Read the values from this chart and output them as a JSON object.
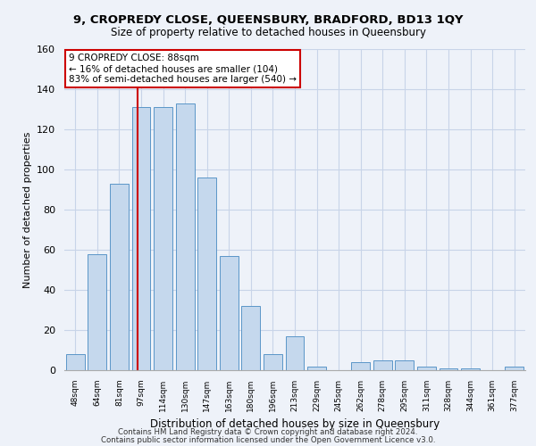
{
  "title1": "9, CROPREDY CLOSE, QUEENSBURY, BRADFORD, BD13 1QY",
  "title2": "Size of property relative to detached houses in Queensbury",
  "xlabel": "Distribution of detached houses by size in Queensbury",
  "ylabel": "Number of detached properties",
  "bar_labels": [
    "48sqm",
    "64sqm",
    "81sqm",
    "97sqm",
    "114sqm",
    "130sqm",
    "147sqm",
    "163sqm",
    "180sqm",
    "196sqm",
    "213sqm",
    "229sqm",
    "245sqm",
    "262sqm",
    "278sqm",
    "295sqm",
    "311sqm",
    "328sqm",
    "344sqm",
    "361sqm",
    "377sqm"
  ],
  "bar_values": [
    8,
    58,
    93,
    131,
    131,
    133,
    96,
    57,
    32,
    8,
    17,
    2,
    0,
    4,
    5,
    5,
    2,
    1,
    1,
    0,
    2
  ],
  "bar_color": "#c5d8ed",
  "bar_edge_color": "#5b96c8",
  "property_line_x": 2.85,
  "annotation_title": "9 CROPREDY CLOSE: 88sqm",
  "annotation_line1": "← 16% of detached houses are smaller (104)",
  "annotation_line2": "83% of semi-detached houses are larger (540) →",
  "annotation_box_color": "#ffffff",
  "annotation_border_color": "#cc0000",
  "vline_color": "#cc0000",
  "ylim": [
    0,
    160
  ],
  "yticks": [
    0,
    20,
    40,
    60,
    80,
    100,
    120,
    140,
    160
  ],
  "grid_color": "#c8d4e8",
  "footer1": "Contains HM Land Registry data © Crown copyright and database right 2024.",
  "footer2": "Contains public sector information licensed under the Open Government Licence v3.0.",
  "bg_color": "#eef2f9"
}
